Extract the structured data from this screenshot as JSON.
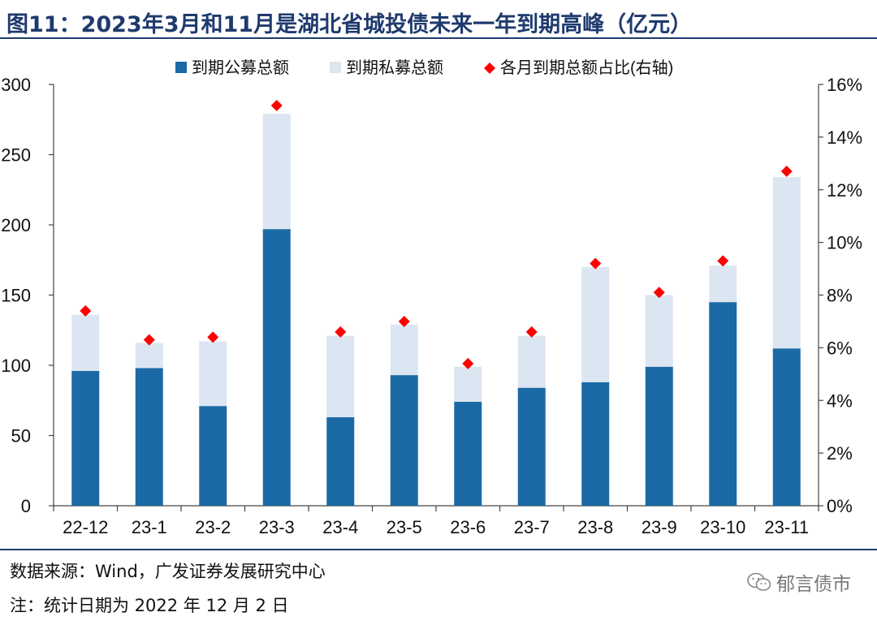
{
  "title": "图11：2023年3月和11月是湖北省城投债未来一年到期高峰（亿元）",
  "source": "数据来源：Wind，广发证券发展研究中心",
  "note": "注：统计日期为 2022 年 12 月 2 日",
  "watermark": "郁言债市",
  "colors": {
    "public": "#1b6aa5",
    "private": "#dce6f2",
    "ratio": "#ff0000",
    "title": "#1f3a6e"
  },
  "chart_data": {
    "type": "bar",
    "stacked": true,
    "categories": [
      "22-12",
      "23-1",
      "23-2",
      "23-3",
      "23-4",
      "23-5",
      "23-6",
      "23-7",
      "23-8",
      "23-9",
      "23-10",
      "23-11"
    ],
    "series": [
      {
        "name": "到期公募总额",
        "values": [
          96,
          98,
          71,
          197,
          63,
          93,
          74,
          84,
          88,
          99,
          145,
          112
        ]
      },
      {
        "name": "到期私募总额",
        "values": [
          40,
          18,
          46,
          82,
          58,
          36,
          25,
          37,
          82,
          51,
          26,
          122
        ]
      },
      {
        "name": "各月到期总额占比(右轴)",
        "axis": "right",
        "values": [
          7.4,
          6.3,
          6.4,
          15.2,
          6.6,
          7.0,
          5.4,
          6.6,
          9.2,
          8.1,
          9.3,
          12.7
        ]
      }
    ],
    "yleft": {
      "min": 0,
      "max": 300,
      "ticks": [
        "0",
        "50",
        "100",
        "150",
        "200",
        "250",
        "300"
      ]
    },
    "yright": {
      "min": 0,
      "max": 16,
      "ticks": [
        "0%",
        "2%",
        "4%",
        "6%",
        "8%",
        "10%",
        "12%",
        "14%",
        "16%"
      ]
    },
    "legend": "top-center"
  }
}
